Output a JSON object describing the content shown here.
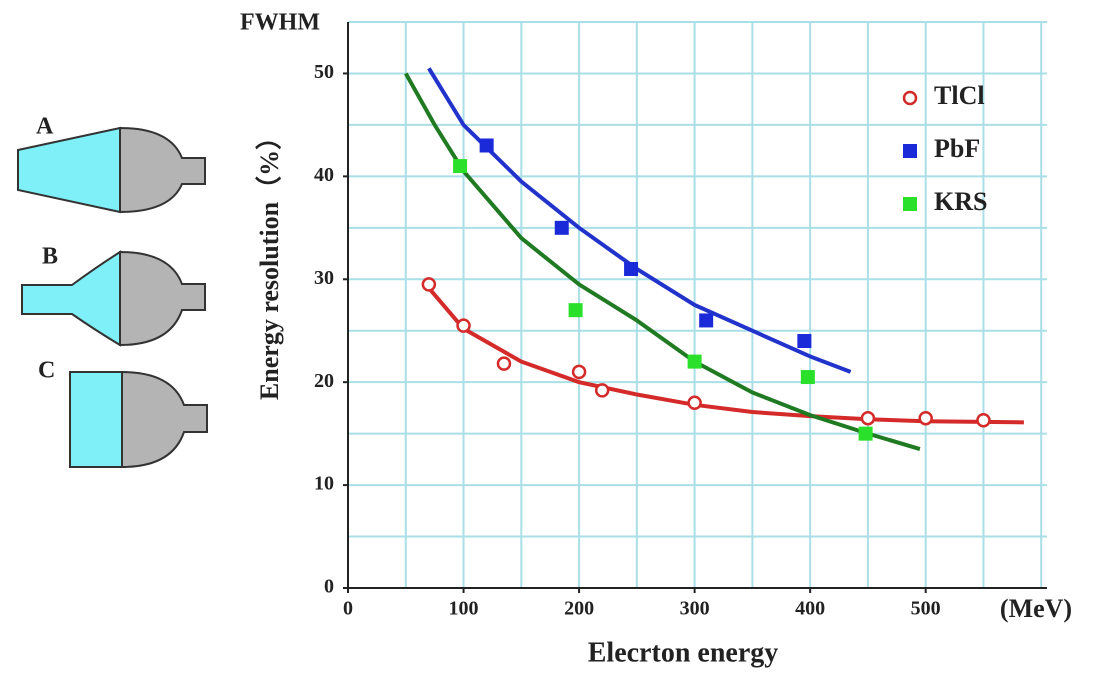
{
  "diagrams": [
    "A",
    "B",
    "C"
  ],
  "chart_data": {
    "type": "scatter",
    "y_title": "FWHM",
    "y_label": "Energy resolution（%）",
    "x_label": "Elecrton energy",
    "x_unit": "(MeV)",
    "xlim": [
      0,
      605
    ],
    "ylim": [
      0,
      55
    ],
    "xticks": [
      0,
      100,
      200,
      300,
      400,
      500
    ],
    "yticks": [
      0,
      10,
      20,
      30,
      40,
      50
    ],
    "xgrid": [
      50,
      100,
      150,
      200,
      250,
      300,
      350,
      400,
      450,
      500,
      550,
      600
    ],
    "ygrid": [
      5,
      10,
      15,
      20,
      25,
      30,
      35,
      40,
      45,
      50,
      55
    ],
    "grid": true,
    "grid_color": "#a9dfe6",
    "legend": "top-right",
    "series": [
      {
        "name": "TlCl",
        "color": "#d42a2a",
        "marker": "open-circle",
        "x": [
          70,
          100,
          135,
          200,
          220,
          300,
          450,
          500,
          550
        ],
        "values": [
          29.5,
          25.5,
          21.8,
          21,
          19.2,
          18,
          16.5,
          16.5,
          16.3
        ],
        "fit": {
          "color": "#d42a2a",
          "x": [
            65,
            100,
            150,
            200,
            250,
            300,
            350,
            400,
            450,
            500,
            585
          ],
          "values": [
            29.8,
            25.2,
            22,
            20,
            18.8,
            17.8,
            17.1,
            16.7,
            16.4,
            16.2,
            16.1
          ]
        }
      },
      {
        "name": "PbF",
        "color": "#1a2ad8",
        "marker": "square",
        "x": [
          120,
          185,
          245,
          310,
          395
        ],
        "values": [
          43,
          35,
          31,
          26,
          24
        ],
        "fit": {
          "color": "#2233cc",
          "x": [
            70,
            100,
            150,
            200,
            250,
            300,
            350,
            400,
            435
          ],
          "values": [
            50.5,
            45,
            39.5,
            35,
            31,
            27.5,
            25,
            22.5,
            21
          ]
        }
      },
      {
        "name": "KRS",
        "color": "#2be02b",
        "marker": "square",
        "x": [
          97,
          197,
          300,
          398,
          448
        ],
        "values": [
          41,
          27,
          22,
          20.5,
          15
        ],
        "fit": {
          "color": "#1f7a22",
          "x": [
            50,
            75,
            100,
            150,
            200,
            250,
            300,
            350,
            400,
            450,
            495
          ],
          "values": [
            50,
            45,
            40.5,
            34,
            29.5,
            26,
            22,
            19,
            16.8,
            15,
            13.5
          ]
        }
      }
    ]
  }
}
